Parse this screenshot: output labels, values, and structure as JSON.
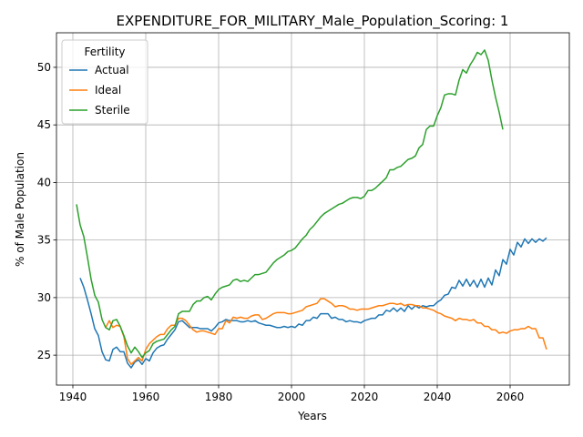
{
  "chart_data": {
    "type": "line",
    "title": "EXPENDITURE_FOR_MILITARY_Male_Population_Scoring: 1",
    "xlabel": "Years",
    "ylabel": "% of Male Population",
    "legend_title": "Fertility",
    "legend": "upper left",
    "grid": true,
    "xlim": [
      1935.5,
      2076.25
    ],
    "ylim": [
      22.4,
      53.0
    ],
    "xticks": [
      1940,
      1960,
      1980,
      2000,
      2020,
      2040,
      2060
    ],
    "yticks": [
      25,
      30,
      35,
      40,
      45,
      50
    ],
    "x": [
      1941,
      1942,
      1943,
      1944,
      1945,
      1946,
      1947,
      1948,
      1949,
      1950,
      1951,
      1952,
      1953,
      1954,
      1955,
      1956,
      1957,
      1958,
      1959,
      1960,
      1961,
      1962,
      1963,
      1964,
      1965,
      1966,
      1967,
      1968,
      1969,
      1970,
      1971,
      1972,
      1973,
      1974,
      1975,
      1976,
      1977,
      1978,
      1979,
      1980,
      1981,
      1982,
      1983,
      1984,
      1985,
      1986,
      1987,
      1988,
      1989,
      1990,
      1991,
      1992,
      1993,
      1994,
      1995,
      1996,
      1997,
      1998,
      1999,
      2000,
      2001,
      2002,
      2003,
      2004,
      2005,
      2006,
      2007,
      2008,
      2009,
      2010,
      2011,
      2012,
      2013,
      2014,
      2015,
      2016,
      2017,
      2018,
      2019,
      2020,
      2021,
      2022,
      2023,
      2024,
      2025,
      2026,
      2027,
      2028,
      2029,
      2030,
      2031,
      2032,
      2033,
      2034,
      2035,
      2036,
      2037,
      2038,
      2039,
      2040,
      2041,
      2042,
      2043,
      2044,
      2045,
      2046,
      2047,
      2048,
      2049,
      2050,
      2051,
      2052,
      2053,
      2054,
      2055,
      2056,
      2057,
      2058,
      2059,
      2060,
      2061,
      2062,
      2063,
      2064,
      2065,
      2066,
      2067,
      2068,
      2069,
      2070
    ],
    "series": [
      {
        "name": "Actual",
        "color": "#1f77b4",
        "values": [
          null,
          31.7,
          30.9,
          29.8,
          28.6,
          27.3,
          26.7,
          25.3,
          24.6,
          24.5,
          25.5,
          25.7,
          25.3,
          25.3,
          24.3,
          23.9,
          24.4,
          24.6,
          24.2,
          24.7,
          24.5,
          25.2,
          25.6,
          25.8,
          25.9,
          26.4,
          26.8,
          27.2,
          27.9,
          28.0,
          27.7,
          27.4,
          27.4,
          27.4,
          27.3,
          27.3,
          27.3,
          27.1,
          27.4,
          27.8,
          27.9,
          28.1,
          28.0,
          28.0,
          28.0,
          27.9,
          27.9,
          28.0,
          27.9,
          28.0,
          27.8,
          27.7,
          27.6,
          27.6,
          27.5,
          27.4,
          27.4,
          27.5,
          27.4,
          27.5,
          27.4,
          27.7,
          27.6,
          28.0,
          28.0,
          28.3,
          28.2,
          28.6,
          28.6,
          28.6,
          28.2,
          28.3,
          28.1,
          28.1,
          27.9,
          28.0,
          27.9,
          27.9,
          27.8,
          28.0,
          28.1,
          28.2,
          28.2,
          28.5,
          28.5,
          28.9,
          28.8,
          29.1,
          28.8,
          29.1,
          28.8,
          29.3,
          29.0,
          29.3,
          29.1,
          29.3,
          29.2,
          29.3,
          29.3,
          29.6,
          29.8,
          30.2,
          30.3,
          30.9,
          30.8,
          31.5,
          31.0,
          31.6,
          31.0,
          31.5,
          30.9,
          31.6,
          30.9,
          31.7,
          31.1,
          32.4,
          31.9,
          33.3,
          32.9,
          34.2,
          33.7,
          34.8,
          34.4,
          35.1,
          34.7,
          35.1,
          34.8,
          35.1,
          34.9,
          35.2
        ]
      },
      {
        "name": "Ideal",
        "color": "#ff7f0e",
        "values": [
          null,
          null,
          null,
          null,
          null,
          null,
          null,
          null,
          27.4,
          28.0,
          27.4,
          27.6,
          27.5,
          26.6,
          24.7,
          24.2,
          24.5,
          24.8,
          24.5,
          25.5,
          26.0,
          26.3,
          26.6,
          26.8,
          26.8,
          27.3,
          27.6,
          27.6,
          28.2,
          28.2,
          28.0,
          27.6,
          27.2,
          27.0,
          27.1,
          27.1,
          27.0,
          26.9,
          26.8,
          27.3,
          27.3,
          28.0,
          27.8,
          28.3,
          28.2,
          28.3,
          28.2,
          28.2,
          28.4,
          28.5,
          28.5,
          28.1,
          28.2,
          28.4,
          28.6,
          28.7,
          28.7,
          28.7,
          28.6,
          28.6,
          28.7,
          28.8,
          28.9,
          29.2,
          29.3,
          29.4,
          29.5,
          29.9,
          29.9,
          29.7,
          29.5,
          29.2,
          29.3,
          29.3,
          29.2,
          29.0,
          29.0,
          28.9,
          29.0,
          29.0,
          29.0,
          29.1,
          29.2,
          29.3,
          29.3,
          29.4,
          29.5,
          29.5,
          29.4,
          29.5,
          29.3,
          29.4,
          29.4,
          29.3,
          29.3,
          29.1,
          29.1,
          29.0,
          28.9,
          28.7,
          28.6,
          28.4,
          28.3,
          28.2,
          28.0,
          28.2,
          28.1,
          28.1,
          28.0,
          28.1,
          27.8,
          27.8,
          27.5,
          27.5,
          27.2,
          27.2,
          26.9,
          27.0,
          26.9,
          27.1,
          27.2,
          27.2,
          27.3,
          27.3,
          27.5,
          27.3,
          27.3,
          26.5,
          26.5,
          25.5
        ]
      },
      {
        "name": "Sterile",
        "color": "#2ca02c",
        "values": [
          38.1,
          36.3,
          35.3,
          33.5,
          31.6,
          30.2,
          29.6,
          28.1,
          27.4,
          27.2,
          28.0,
          28.1,
          27.5,
          26.7,
          25.8,
          25.2,
          25.7,
          25.3,
          24.8,
          25.2,
          25.4,
          26.0,
          26.2,
          26.3,
          26.4,
          26.8,
          27.2,
          27.5,
          28.6,
          28.8,
          28.8,
          28.8,
          29.4,
          29.7,
          29.7,
          30.0,
          30.1,
          29.8,
          30.3,
          30.7,
          30.9,
          31.0,
          31.1,
          31.5,
          31.6,
          31.4,
          31.5,
          31.4,
          31.7,
          32.0,
          32.0,
          32.1,
          32.2,
          32.6,
          33.0,
          33.3,
          33.5,
          33.7,
          34.0,
          34.1,
          34.3,
          34.7,
          35.1,
          35.4,
          35.9,
          36.2,
          36.6,
          37.0,
          37.3,
          37.5,
          37.7,
          37.9,
          38.1,
          38.2,
          38.4,
          38.6,
          38.7,
          38.7,
          38.6,
          38.8,
          39.3,
          39.3,
          39.5,
          39.8,
          40.1,
          40.4,
          41.1,
          41.1,
          41.3,
          41.4,
          41.7,
          42.0,
          42.1,
          42.3,
          43.0,
          43.3,
          44.6,
          44.9,
          44.9,
          45.8,
          46.5,
          47.6,
          47.7,
          47.7,
          47.6,
          48.9,
          49.8,
          49.5,
          50.2,
          50.7,
          51.3,
          51.1,
          51.5,
          50.6,
          48.9,
          47.4,
          46.1,
          44.6,
          null,
          null,
          null,
          null,
          null,
          null,
          null,
          null,
          null,
          null,
          null,
          null
        ]
      }
    ]
  }
}
